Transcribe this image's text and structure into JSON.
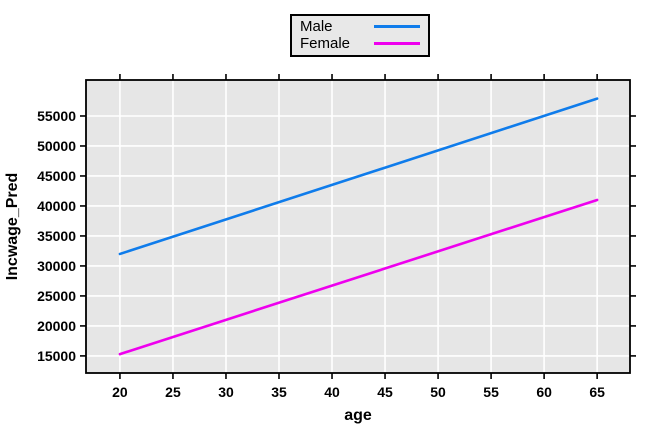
{
  "chart_data": {
    "type": "line",
    "title": "",
    "xlabel": "age",
    "ylabel": "Incwage_Pred",
    "x_ticks": [
      20,
      25,
      30,
      35,
      40,
      45,
      50,
      55,
      60,
      65
    ],
    "y_ticks": [
      15000,
      20000,
      25000,
      30000,
      35000,
      40000,
      45000,
      50000,
      55000
    ],
    "xlim": [
      16.8,
      68.1
    ],
    "ylim": [
      12150,
      61000
    ],
    "grid": true,
    "panel_bg": "#e6e6e6",
    "grid_color": "#ffffff",
    "border_color": "#000000",
    "legend_position": "top-center",
    "series": [
      {
        "name": "Male",
        "color": "#0f7ceb",
        "x": [
          20,
          65
        ],
        "y": [
          32000,
          57900
        ]
      },
      {
        "name": "Female",
        "color": "#ee00ee",
        "x": [
          20,
          65
        ],
        "y": [
          15300,
          41000
        ]
      }
    ]
  }
}
